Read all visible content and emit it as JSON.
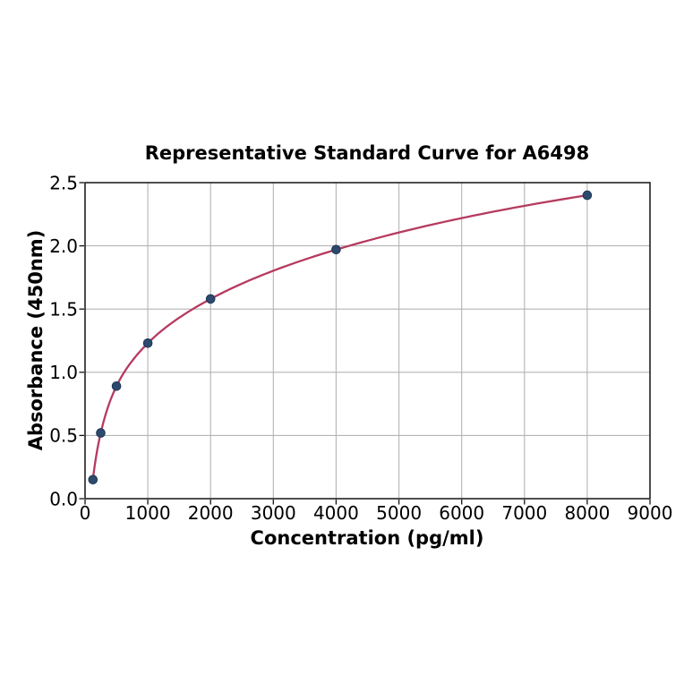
{
  "chart_data": {
    "type": "scatter",
    "title": "Representative Standard Curve for A6498",
    "xlabel": "Concentration (pg/ml)",
    "ylabel": "Absorbance (450nm)",
    "x": [
      125,
      250,
      500,
      1000,
      2000,
      4000,
      8000
    ],
    "y": [
      0.15,
      0.52,
      0.89,
      1.23,
      1.58,
      1.97,
      2.4
    ],
    "xlim": [
      0,
      9000
    ],
    "ylim": [
      0.0,
      2.5
    ],
    "xticks": [
      0,
      1000,
      2000,
      3000,
      4000,
      5000,
      6000,
      7000,
      8000,
      9000
    ],
    "xtick_labels": [
      "0",
      "1000",
      "2000",
      "3000",
      "4000",
      "5000",
      "6000",
      "7000",
      "8000",
      "9000"
    ],
    "yticks": [
      0.0,
      0.5,
      1.0,
      1.5,
      2.0,
      2.5
    ],
    "ytick_labels": [
      "0.0",
      "0.5",
      "1.0",
      "1.5",
      "2.0",
      "2.5"
    ],
    "grid": true,
    "legend": null,
    "curve": "smooth fitted line through all points, from first point (125) to last point (8000)",
    "colors": {
      "background": "#ffffff",
      "curve": "#b63a5f",
      "marker": "#2d4a6e",
      "marker_edge": "#1d3552",
      "grid": "#b4b4b4",
      "spine": "#141414",
      "text": "#000000"
    }
  }
}
